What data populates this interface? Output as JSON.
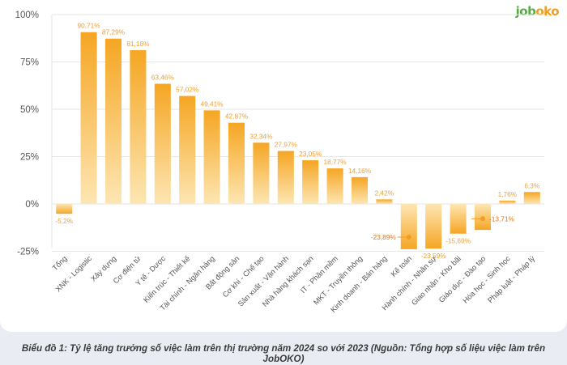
{
  "logo": {
    "part1": "job",
    "part2": "oko"
  },
  "caption": "Biểu đồ 1: Tỷ lệ tăng trưởng số việc làm trên thị trường năm 2024 so với 2023 (Nguồn: Tổng hợp số liệu việc làm trên JobOKO)",
  "chart_data": {
    "type": "bar",
    "title": "Biểu đồ 1: Tỷ lệ tăng trưởng số việc làm trên thị trường năm 2024 so với 2023",
    "xlabel": "",
    "ylabel": "",
    "ylim": [
      -25,
      100
    ],
    "yticks": [
      -25,
      0,
      25,
      50,
      75,
      100
    ],
    "ytick_labels": [
      "-25%",
      "0%",
      "25%",
      "50%",
      "75%",
      "100%"
    ],
    "grid": true,
    "categories": [
      "Tổng",
      "XNK - Logistic",
      "Xây dựng",
      "Cơ điện tử",
      "Y tế - Dược",
      "Kiến trúc - Thiết kế",
      "Tài chính - Ngân hàng",
      "Bất động sản",
      "Cơ khí - Chế tạo",
      "Sản xuất - Vận hành",
      "Nhà hàng khách sạn",
      "IT - Phần mềm",
      "MKT - Truyền thông",
      "Kinh doanh - Bán hàng",
      "Kế toán",
      "Hành chính - Nhân sự",
      "Giao nhận - Kho bãi",
      "Giáo dục - Đào tạo",
      "Hóa học - Sinh học",
      "Pháp luật - Pháp lý"
    ],
    "values": [
      -5.2,
      90.71,
      87.29,
      81.18,
      63.46,
      57.02,
      49.41,
      42.87,
      32.34,
      27.97,
      23.05,
      18.77,
      14.16,
      2.42,
      -23.89,
      -23.59,
      -15.69,
      -13.71,
      1.76,
      6.3
    ],
    "data_labels": [
      "-5,2%",
      "90,71%",
      "87,29%",
      "81,18%",
      "63,46%",
      "57,02%",
      "49,41%",
      "42,87%",
      "32,34%",
      "27,97%",
      "23,05%",
      "18,77%",
      "14,16%",
      "2,42%",
      "-23,89%",
      "-23,59%",
      "-15,69%",
      "-13,71%",
      "1,76%",
      "6,3%"
    ],
    "colors": {
      "bar_top": "#f5a623",
      "bar_bottom": "#fde6b3",
      "label": "#f0a030",
      "axis_text": "#555555",
      "grid": "#e6e6e6",
      "callout": "#f39c24"
    }
  }
}
